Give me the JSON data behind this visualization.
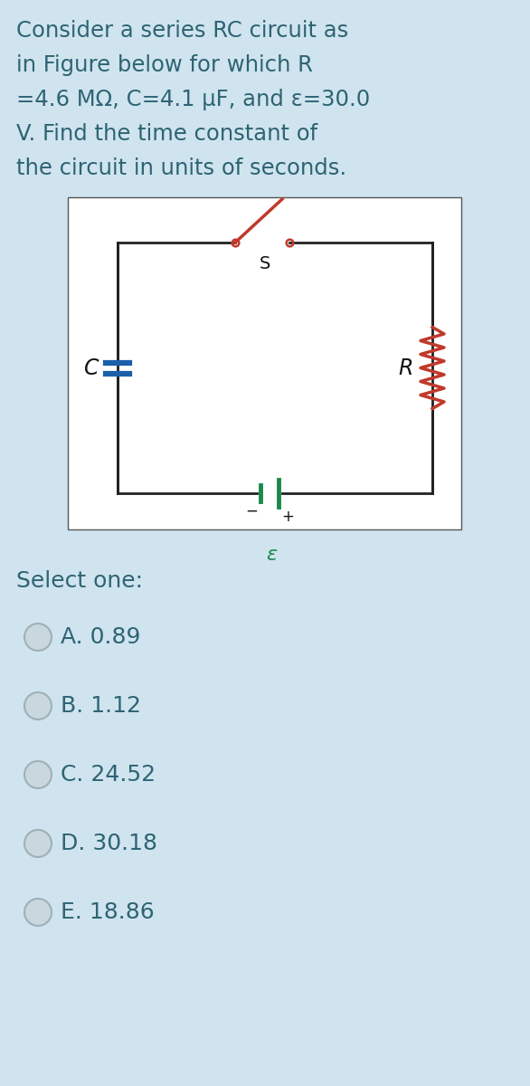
{
  "bg_color": "#cfe4ee",
  "text_color": "#2e6474",
  "question_lines": [
    "Consider a series RC circuit as",
    "in Figure below for which R",
    "=4.6 MΩ, C=4.1 μF, and ε=30.0",
    "V. Find the time constant of",
    "the circuit in units of seconds."
  ],
  "select_one": "Select one:",
  "options": [
    "A. 0.89",
    "B. 1.12",
    "C. 24.52",
    "D. 30.18",
    "E. 18.86"
  ],
  "circuit_bg": "#ffffff",
  "circuit_border": "#555555",
  "wire_color": "#222222",
  "capacitor_color": "#1a5fa8",
  "resistor_color": "#c0392b",
  "battery_color": "#1a8a4a",
  "switch_color": "#c0392b",
  "label_color": "#111111",
  "epsilon_color": "#1a8a4a",
  "radio_face": "#c8d8de",
  "radio_edge": "#a0b0b8"
}
